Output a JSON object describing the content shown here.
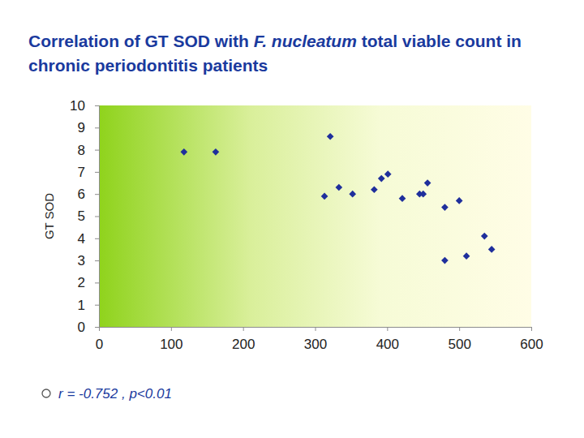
{
  "chart_data": {
    "type": "scatter",
    "title": "Correlation of GT SOD with F. nucleatum total viable count in chronic periodontitis patients",
    "y_label": "GT SOD",
    "annotation": "r = -0.752 , p<0.01",
    "x": [
      118,
      162,
      321,
      313,
      333,
      352,
      382,
      392,
      401,
      421,
      445,
      450,
      456,
      480,
      500,
      480,
      510,
      535,
      545
    ],
    "values": [
      7.9,
      7.9,
      8.6,
      5.9,
      6.3,
      6.0,
      6.2,
      6.7,
      6.9,
      5.8,
      6.0,
      6.0,
      6.5,
      5.4,
      5.7,
      3.0,
      3.2,
      4.1,
      3.5
    ],
    "color": "#1f2f9c",
    "marker": "diamond",
    "xlim": [
      0,
      600
    ],
    "xticks": [
      0,
      100,
      200,
      300,
      400,
      500,
      600
    ],
    "ylim": [
      0,
      10
    ],
    "yticks": [
      0,
      1,
      2,
      3,
      4,
      5,
      6,
      7,
      8,
      9,
      10
    ],
    "grid": false
  }
}
